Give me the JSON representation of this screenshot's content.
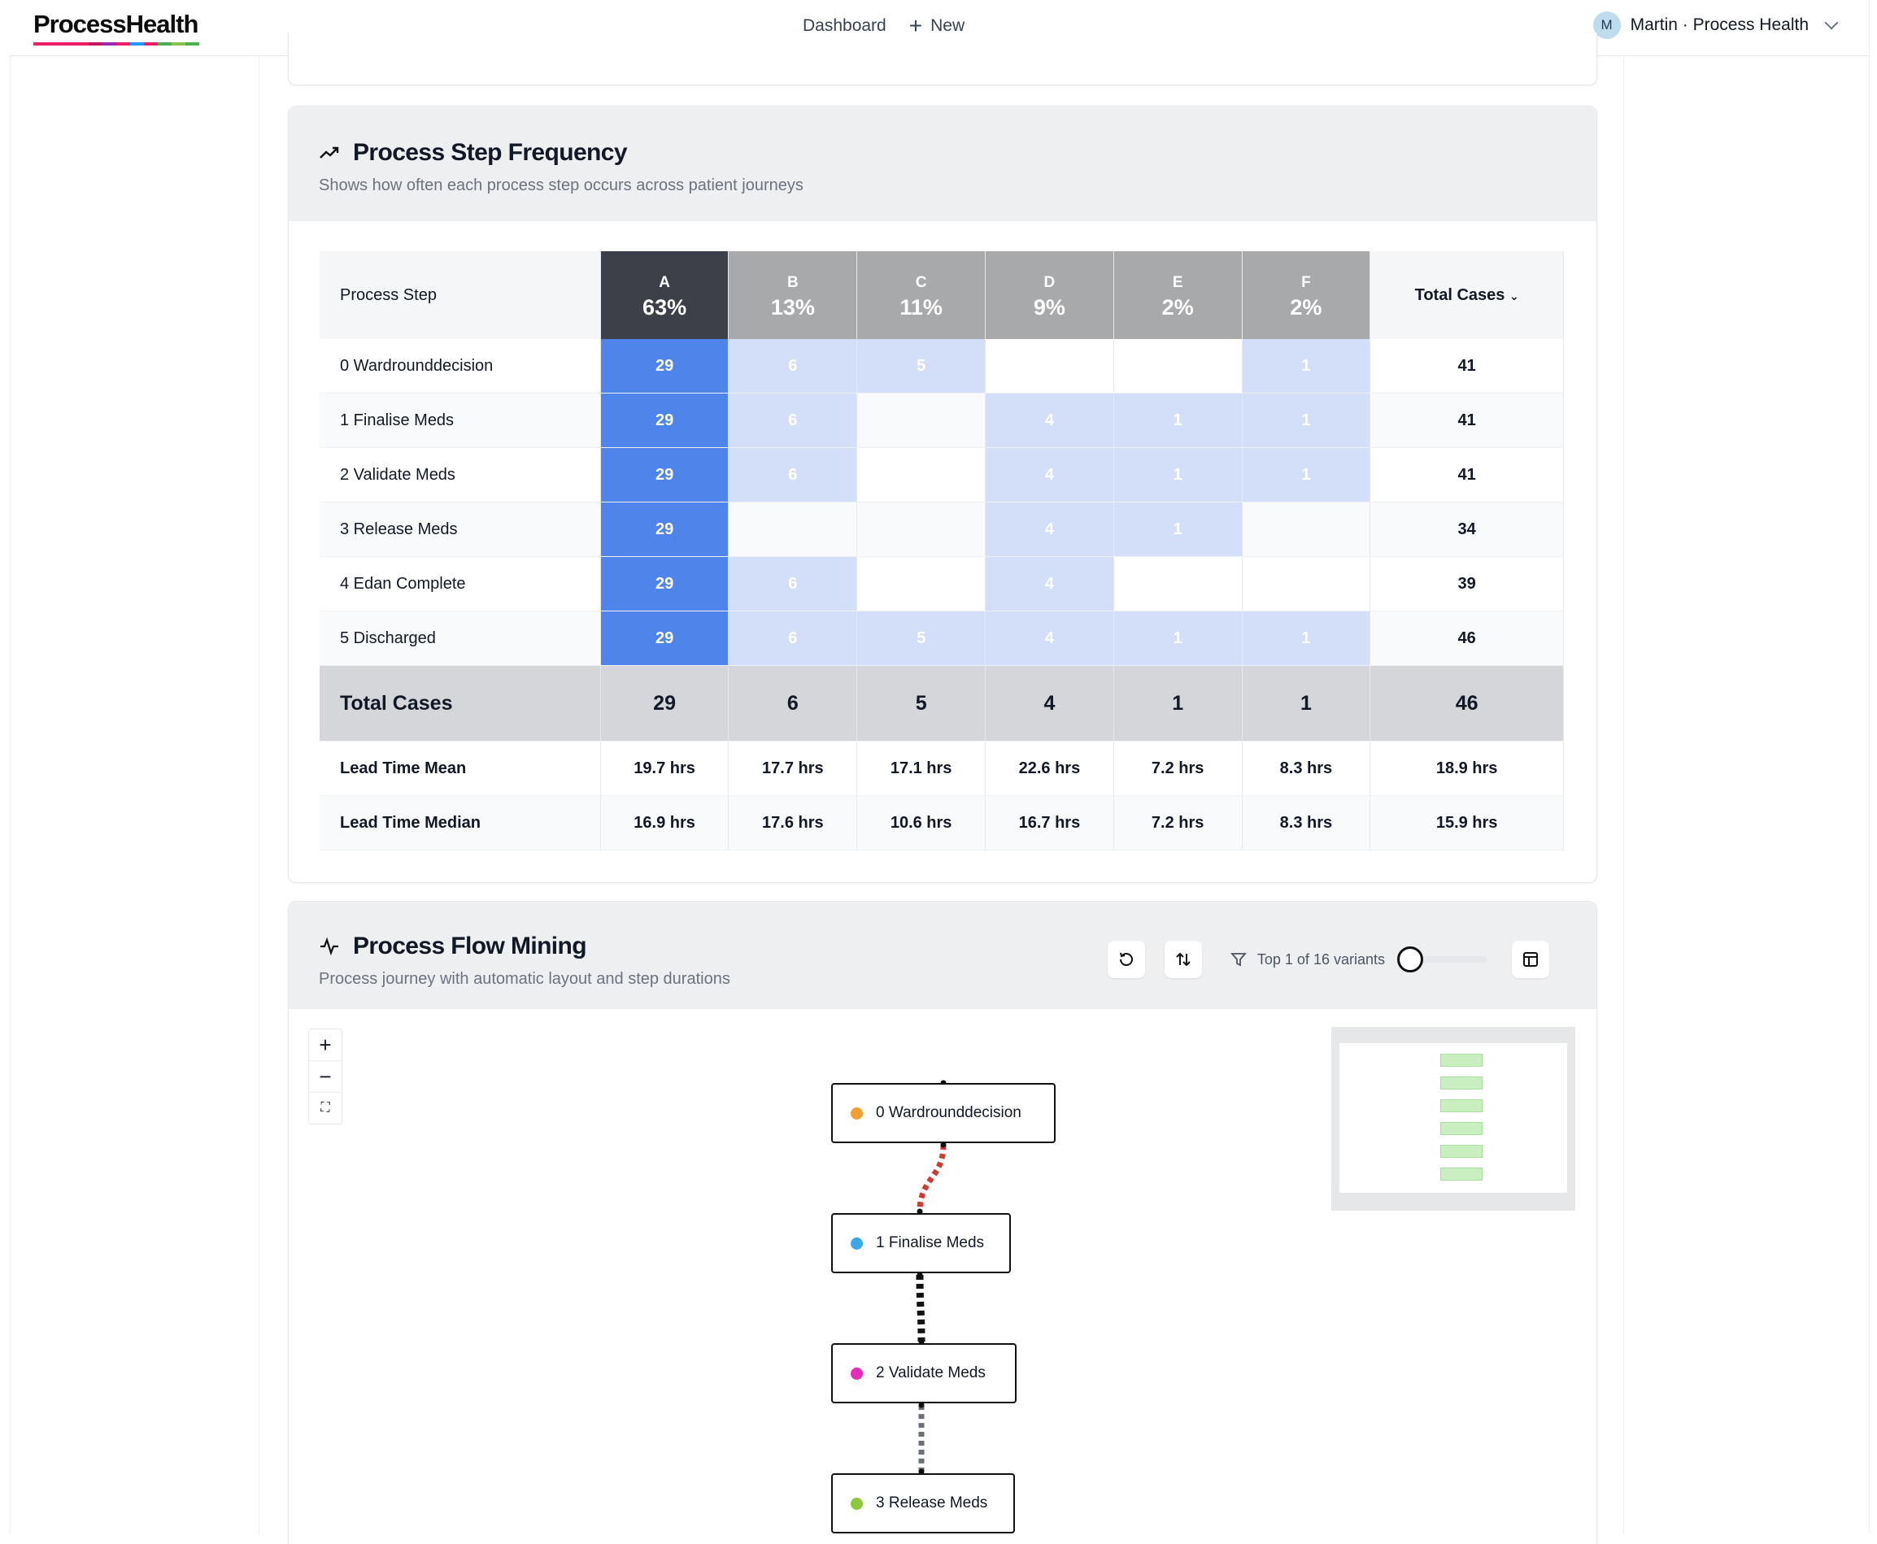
{
  "brand": {
    "name": "ProcessHealth",
    "bar_colors": [
      "#e91e63",
      "#e91e63",
      "#e91e63",
      "#e91e63",
      "#c2185b",
      "#9c27b0",
      "#e91e63",
      "#2196f3",
      "#e91e63",
      "#4caf50",
      "#8bc34a",
      "#4caf50"
    ]
  },
  "nav": {
    "dashboard": "Dashboard",
    "new": "New"
  },
  "user": {
    "initial": "M",
    "label": "Martin · Process Health"
  },
  "frequency": {
    "title": "Process Step Frequency",
    "subtitle": "Shows how often each process step occurs across patient journeys",
    "row_header": "Process Step",
    "total_header": "Total Cases",
    "columns": [
      {
        "letter": "A",
        "pct": "63%",
        "bg": "#3d4049"
      },
      {
        "letter": "B",
        "pct": "13%",
        "bg": "#a8a9ab"
      },
      {
        "letter": "C",
        "pct": "11%",
        "bg": "#a8a9ab"
      },
      {
        "letter": "D",
        "pct": "9%",
        "bg": "#a8a9ab"
      },
      {
        "letter": "E",
        "pct": "2%",
        "bg": "#a8a9ab"
      },
      {
        "letter": "F",
        "pct": "2%",
        "bg": "#a8a9ab"
      }
    ],
    "rows": [
      {
        "step": "0 Wardrounddecision",
        "cells": [
          "29",
          "6",
          "5",
          "",
          "",
          "1"
        ],
        "total": "41"
      },
      {
        "step": "1 Finalise Meds",
        "cells": [
          "29",
          "6",
          "",
          "4",
          "1",
          "1"
        ],
        "total": "41"
      },
      {
        "step": "2 Validate Meds",
        "cells": [
          "29",
          "6",
          "",
          "4",
          "1",
          "1"
        ],
        "total": "41"
      },
      {
        "step": "3 Release Meds",
        "cells": [
          "29",
          "",
          "",
          "4",
          "1",
          ""
        ],
        "total": "34"
      },
      {
        "step": "4 Edan Complete",
        "cells": [
          "29",
          "6",
          "",
          "4",
          "",
          ""
        ],
        "total": "39"
      },
      {
        "step": "5 Discharged",
        "cells": [
          "29",
          "6",
          "5",
          "4",
          "1",
          "1"
        ],
        "total": "46"
      }
    ],
    "totals": {
      "label": "Total Cases",
      "values": [
        "29",
        "6",
        "5",
        "4",
        "1",
        "1"
      ],
      "grand": "46"
    },
    "lead_mean": {
      "label": "Lead Time Mean",
      "values": [
        "19.7 hrs",
        "17.7 hrs",
        "17.1 hrs",
        "22.6 hrs",
        "7.2 hrs",
        "8.3 hrs"
      ],
      "total": "18.9 hrs"
    },
    "lead_median": {
      "label": "Lead Time Median",
      "values": [
        "16.9 hrs",
        "17.6 hrs",
        "10.6 hrs",
        "16.7 hrs",
        "7.2 hrs",
        "8.3 hrs"
      ],
      "total": "15.9 hrs"
    }
  },
  "flow": {
    "title": "Process Flow Mining",
    "subtitle": "Process journey with automatic layout and step durations",
    "variants_label": "Top 1 of 16 variants",
    "variants_fraction": 0.0625,
    "nodes": [
      {
        "label": "0 Wardrounddecision",
        "color": "#f0a030"
      },
      {
        "label": "1 Finalise Meds",
        "color": "#3aa7e8"
      },
      {
        "label": "2 Validate Meds",
        "color": "#e82bb8"
      },
      {
        "label": "3 Release Meds",
        "color": "#8cc83a"
      }
    ],
    "edge_colors": [
      "#d23a30",
      "#111111",
      "#6b6f78"
    ]
  }
}
